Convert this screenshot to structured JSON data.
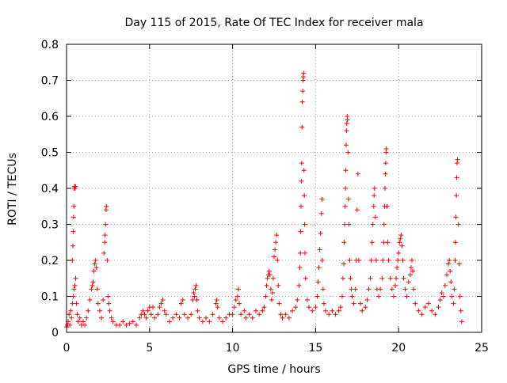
{
  "chart_data": {
    "type": "scatter",
    "title": "Day 115 of 2015, Rate Of TEC Index for receiver mala",
    "xlabel": "GPS time / hours",
    "ylabel": "ROTI / TECUs",
    "xlim": [
      0,
      25
    ],
    "ylim": [
      0,
      0.8
    ],
    "xticks": [
      0,
      5,
      10,
      15,
      20,
      25
    ],
    "yticks": [
      0,
      0.1,
      0.2,
      0.3,
      0.4,
      0.5,
      0.6,
      0.7,
      0.8
    ],
    "xtick_labels": [
      "0",
      "5",
      "10",
      "15",
      "20",
      "25"
    ],
    "ytick_labels": [
      "0",
      "0.1",
      "0.2",
      "0.3",
      "0.4",
      "0.5",
      "0.6",
      "0.7",
      "0.8"
    ],
    "grid": true,
    "legend": "none",
    "marker": "plus",
    "color": "#ff0000",
    "series": [
      {
        "points": [
          [
            0.0,
            0.015
          ],
          [
            0.05,
            0.02
          ],
          [
            0.1,
            0.03
          ],
          [
            0.15,
            0.05
          ],
          [
            0.2,
            0.02
          ],
          [
            0.25,
            0.06
          ],
          [
            0.3,
            0.04
          ],
          [
            0.35,
            0.08
          ],
          [
            0.4,
            0.1
          ],
          [
            0.45,
            0.12
          ],
          [
            0.5,
            0.13
          ],
          [
            0.55,
            0.15
          ],
          [
            0.6,
            0.08
          ],
          [
            0.65,
            0.05
          ],
          [
            0.7,
            0.03
          ],
          [
            0.8,
            0.04
          ],
          [
            0.9,
            0.02
          ],
          [
            1.0,
            0.03
          ],
          [
            0.35,
            0.2
          ],
          [
            0.38,
            0.24
          ],
          [
            0.4,
            0.28
          ],
          [
            0.42,
            0.32
          ],
          [
            0.44,
            0.35
          ],
          [
            0.46,
            0.4
          ],
          [
            0.48,
            0.405
          ],
          [
            0.5,
            0.405
          ],
          [
            0.52,
            0.4
          ],
          [
            0.54,
            0.405
          ],
          [
            1.1,
            0.02
          ],
          [
            1.2,
            0.04
          ],
          [
            1.3,
            0.06
          ],
          [
            1.4,
            0.09
          ],
          [
            1.5,
            0.12
          ],
          [
            1.55,
            0.13
          ],
          [
            1.6,
            0.14
          ],
          [
            1.65,
            0.17
          ],
          [
            1.7,
            0.19
          ],
          [
            1.75,
            0.2
          ],
          [
            1.8,
            0.18
          ],
          [
            1.85,
            0.12
          ],
          [
            1.9,
            0.08
          ],
          [
            2.0,
            0.06
          ],
          [
            2.1,
            0.04
          ],
          [
            2.2,
            0.09
          ],
          [
            2.25,
            0.22
          ],
          [
            2.3,
            0.25
          ],
          [
            2.32,
            0.27
          ],
          [
            2.35,
            0.3
          ],
          [
            2.38,
            0.34
          ],
          [
            2.4,
            0.35
          ],
          [
            2.45,
            0.2
          ],
          [
            2.5,
            0.1
          ],
          [
            2.55,
            0.08
          ],
          [
            2.6,
            0.06
          ],
          [
            2.7,
            0.04
          ],
          [
            2.8,
            0.03
          ],
          [
            3.0,
            0.02
          ],
          [
            3.2,
            0.02
          ],
          [
            3.4,
            0.03
          ],
          [
            3.6,
            0.02
          ],
          [
            3.8,
            0.025
          ],
          [
            4.0,
            0.03
          ],
          [
            4.2,
            0.02
          ],
          [
            4.4,
            0.04
          ],
          [
            4.5,
            0.05
          ],
          [
            4.6,
            0.06
          ],
          [
            4.7,
            0.05
          ],
          [
            4.8,
            0.04
          ],
          [
            4.9,
            0.06
          ],
          [
            5.0,
            0.07
          ],
          [
            5.1,
            0.05
          ],
          [
            5.2,
            0.07
          ],
          [
            5.3,
            0.04
          ],
          [
            5.5,
            0.05
          ],
          [
            5.6,
            0.07
          ],
          [
            5.7,
            0.08
          ],
          [
            5.8,
            0.09
          ],
          [
            5.9,
            0.06
          ],
          [
            6.0,
            0.05
          ],
          [
            6.2,
            0.03
          ],
          [
            6.4,
            0.04
          ],
          [
            6.6,
            0.05
          ],
          [
            6.8,
            0.04
          ],
          [
            6.9,
            0.08
          ],
          [
            7.0,
            0.09
          ],
          [
            7.1,
            0.05
          ],
          [
            7.3,
            0.04
          ],
          [
            7.5,
            0.05
          ],
          [
            7.6,
            0.09
          ],
          [
            7.65,
            0.11
          ],
          [
            7.7,
            0.1
          ],
          [
            7.75,
            0.12
          ],
          [
            7.8,
            0.13
          ],
          [
            7.85,
            0.09
          ],
          [
            7.9,
            0.06
          ],
          [
            8.0,
            0.04
          ],
          [
            8.2,
            0.03
          ],
          [
            8.4,
            0.04
          ],
          [
            8.6,
            0.03
          ],
          [
            8.8,
            0.05
          ],
          [
            9.0,
            0.08
          ],
          [
            9.05,
            0.09
          ],
          [
            9.1,
            0.07
          ],
          [
            9.2,
            0.04
          ],
          [
            9.4,
            0.03
          ],
          [
            9.6,
            0.04
          ],
          [
            9.8,
            0.05
          ],
          [
            10.0,
            0.05
          ],
          [
            10.1,
            0.07
          ],
          [
            10.2,
            0.09
          ],
          [
            10.3,
            0.1
          ],
          [
            10.35,
            0.12
          ],
          [
            10.4,
            0.08
          ],
          [
            10.5,
            0.05
          ],
          [
            10.7,
            0.06
          ],
          [
            10.8,
            0.04
          ],
          [
            11.0,
            0.05
          ],
          [
            11.2,
            0.04
          ],
          [
            11.4,
            0.06
          ],
          [
            11.6,
            0.05
          ],
          [
            11.8,
            0.06
          ],
          [
            11.9,
            0.07
          ],
          [
            12.0,
            0.1
          ],
          [
            12.05,
            0.13
          ],
          [
            12.1,
            0.15
          ],
          [
            12.15,
            0.16
          ],
          [
            12.2,
            0.17
          ],
          [
            12.25,
            0.16
          ],
          [
            12.3,
            0.12
          ],
          [
            12.35,
            0.09
          ],
          [
            12.4,
            0.11
          ],
          [
            12.45,
            0.15
          ],
          [
            12.5,
            0.21
          ],
          [
            12.55,
            0.23
          ],
          [
            12.6,
            0.25
          ],
          [
            12.65,
            0.27
          ],
          [
            12.7,
            0.2
          ],
          [
            12.75,
            0.13
          ],
          [
            12.8,
            0.08
          ],
          [
            12.9,
            0.05
          ],
          [
            13.0,
            0.04
          ],
          [
            13.2,
            0.05
          ],
          [
            13.4,
            0.04
          ],
          [
            13.6,
            0.06
          ],
          [
            13.8,
            0.07
          ],
          [
            13.9,
            0.09
          ],
          [
            14.0,
            0.13
          ],
          [
            14.05,
            0.18
          ],
          [
            14.08,
            0.22
          ],
          [
            14.1,
            0.28
          ],
          [
            14.12,
            0.35
          ],
          [
            14.14,
            0.42
          ],
          [
            14.16,
            0.47
          ],
          [
            14.18,
            0.57
          ],
          [
            14.2,
            0.64
          ],
          [
            14.22,
            0.67
          ],
          [
            14.24,
            0.7
          ],
          [
            14.26,
            0.71
          ],
          [
            14.28,
            0.72
          ],
          [
            14.3,
            0.45
          ],
          [
            14.32,
            0.38
          ],
          [
            14.34,
            0.3
          ],
          [
            14.36,
            0.22
          ],
          [
            14.4,
            0.15
          ],
          [
            14.5,
            0.09
          ],
          [
            14.6,
            0.07
          ],
          [
            14.8,
            0.06
          ],
          [
            15.0,
            0.07
          ],
          [
            15.1,
            0.1
          ],
          [
            15.15,
            0.14
          ],
          [
            15.2,
            0.18
          ],
          [
            15.25,
            0.23
          ],
          [
            15.3,
            0.275
          ],
          [
            15.35,
            0.33
          ],
          [
            15.38,
            0.37
          ],
          [
            15.4,
            0.2
          ],
          [
            15.45,
            0.12
          ],
          [
            15.5,
            0.08
          ],
          [
            15.6,
            0.06
          ],
          [
            15.8,
            0.05
          ],
          [
            16.0,
            0.06
          ],
          [
            16.2,
            0.05
          ],
          [
            16.4,
            0.06
          ],
          [
            16.5,
            0.07
          ],
          [
            16.6,
            0.1
          ],
          [
            16.65,
            0.15
          ],
          [
            16.7,
            0.19
          ],
          [
            16.72,
            0.25
          ],
          [
            16.75,
            0.3
          ],
          [
            16.78,
            0.35
          ],
          [
            16.8,
            0.4
          ],
          [
            16.82,
            0.45
          ],
          [
            16.84,
            0.52
          ],
          [
            16.86,
            0.56
          ],
          [
            16.88,
            0.58
          ],
          [
            16.9,
            0.6
          ],
          [
            16.92,
            0.59
          ],
          [
            16.95,
            0.5
          ],
          [
            16.98,
            0.37
          ],
          [
            17.0,
            0.3
          ],
          [
            17.05,
            0.2
          ],
          [
            17.1,
            0.15
          ],
          [
            17.15,
            0.12
          ],
          [
            17.2,
            0.1
          ],
          [
            17.3,
            0.08
          ],
          [
            17.4,
            0.12
          ],
          [
            17.45,
            0.2
          ],
          [
            17.5,
            0.34
          ],
          [
            17.55,
            0.44
          ],
          [
            17.6,
            0.2
          ],
          [
            17.7,
            0.08
          ],
          [
            17.8,
            0.06
          ],
          [
            18.0,
            0.07
          ],
          [
            18.1,
            0.09
          ],
          [
            18.2,
            0.12
          ],
          [
            18.3,
            0.15
          ],
          [
            18.35,
            0.2
          ],
          [
            18.4,
            0.25
          ],
          [
            18.45,
            0.3
          ],
          [
            18.5,
            0.35
          ],
          [
            18.52,
            0.38
          ],
          [
            18.55,
            0.4
          ],
          [
            18.6,
            0.32
          ],
          [
            18.65,
            0.2
          ],
          [
            18.7,
            0.12
          ],
          [
            18.8,
            0.1
          ],
          [
            18.9,
            0.12
          ],
          [
            19.0,
            0.15
          ],
          [
            19.05,
            0.2
          ],
          [
            19.1,
            0.25
          ],
          [
            19.12,
            0.3
          ],
          [
            19.15,
            0.35
          ],
          [
            19.18,
            0.4
          ],
          [
            19.2,
            0.44
          ],
          [
            19.22,
            0.47
          ],
          [
            19.24,
            0.5
          ],
          [
            19.26,
            0.51
          ],
          [
            19.3,
            0.35
          ],
          [
            19.35,
            0.25
          ],
          [
            19.4,
            0.2
          ],
          [
            19.5,
            0.15
          ],
          [
            19.6,
            0.12
          ],
          [
            19.7,
            0.1
          ],
          [
            19.8,
            0.13
          ],
          [
            19.85,
            0.15
          ],
          [
            19.9,
            0.18
          ],
          [
            19.95,
            0.2
          ],
          [
            20.0,
            0.22
          ],
          [
            20.05,
            0.25
          ],
          [
            20.1,
            0.26
          ],
          [
            20.15,
            0.27
          ],
          [
            20.2,
            0.24
          ],
          [
            20.25,
            0.2
          ],
          [
            20.3,
            0.15
          ],
          [
            20.4,
            0.12
          ],
          [
            20.5,
            0.1
          ],
          [
            20.6,
            0.14
          ],
          [
            20.7,
            0.16
          ],
          [
            20.75,
            0.18
          ],
          [
            20.8,
            0.2
          ],
          [
            20.85,
            0.17
          ],
          [
            20.9,
            0.12
          ],
          [
            21.0,
            0.08
          ],
          [
            21.2,
            0.06
          ],
          [
            21.4,
            0.05
          ],
          [
            21.6,
            0.07
          ],
          [
            21.8,
            0.08
          ],
          [
            22.0,
            0.06
          ],
          [
            22.2,
            0.05
          ],
          [
            22.4,
            0.07
          ],
          [
            22.5,
            0.09
          ],
          [
            22.6,
            0.11
          ],
          [
            22.7,
            0.1
          ],
          [
            22.8,
            0.13
          ],
          [
            22.9,
            0.16
          ],
          [
            23.0,
            0.19
          ],
          [
            23.05,
            0.2
          ],
          [
            23.1,
            0.17
          ],
          [
            23.15,
            0.14
          ],
          [
            23.2,
            0.1
          ],
          [
            23.3,
            0.08
          ],
          [
            23.35,
            0.12
          ],
          [
            23.4,
            0.2
          ],
          [
            23.42,
            0.25
          ],
          [
            23.45,
            0.32
          ],
          [
            23.48,
            0.38
          ],
          [
            23.5,
            0.43
          ],
          [
            23.52,
            0.47
          ],
          [
            23.55,
            0.48
          ],
          [
            23.6,
            0.3
          ],
          [
            23.65,
            0.19
          ],
          [
            23.7,
            0.1
          ],
          [
            23.75,
            0.06
          ],
          [
            23.8,
            0.03
          ]
        ]
      }
    ]
  }
}
